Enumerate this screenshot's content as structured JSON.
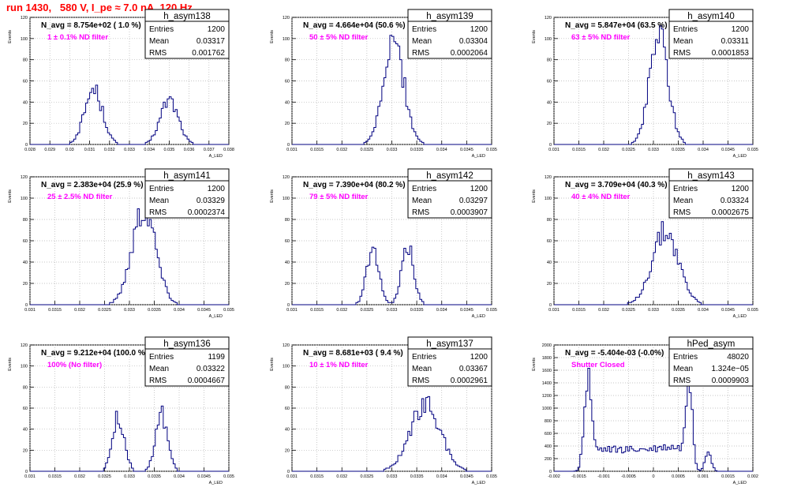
{
  "page": {
    "title": "run 1430,   580 V, I_pe ≈ 7.0 nA, 120 Hz"
  },
  "colors": {
    "hist": "#000080",
    "title": "#ff0000",
    "filter_label": "#ff00ff",
    "grid": "#b4b4b4"
  },
  "chart_data": [
    {
      "type": "histogram",
      "name": "h_asym138",
      "color": "#000080",
      "nav_label": "N_avg = 8.754e+02 ( 1.0 %)",
      "filter_label": "1 ± 0.1% ND filter",
      "stats": [
        [
          "Entries",
          "1200"
        ],
        [
          "Mean",
          "0.03317"
        ],
        [
          "RMS",
          "0.001762"
        ]
      ],
      "xlabel": "A_LED",
      "ylabel": "Events",
      "xlim": [
        0.028,
        0.038
      ],
      "ylim": [
        0,
        120
      ],
      "xticks": [
        "0.028",
        "0.029",
        "0.03",
        "0.031",
        "0.032",
        "0.033",
        "0.034",
        "0.035",
        "0.036",
        "0.037",
        "0.038"
      ],
      "yticks": [
        "0",
        "20",
        "40",
        "60",
        "80",
        "100",
        "120"
      ],
      "peaks": [
        [
          0.0312,
          0.00045,
          52
        ],
        [
          0.035,
          0.00045,
          42
        ]
      ]
    },
    {
      "type": "histogram",
      "name": "h_asym139",
      "color": "#000080",
      "nav_label": "N_avg = 4.664e+04 (50.6 %)",
      "filter_label": "50 ± 5% ND filter",
      "stats": [
        [
          "Entries",
          "1200"
        ],
        [
          "Mean",
          "0.03304"
        ],
        [
          "RMS",
          "0.0002064"
        ]
      ],
      "xlabel": "A_LED",
      "ylabel": "Events",
      "xlim": [
        0.031,
        0.035
      ],
      "ylim": [
        0,
        120
      ],
      "xticks": [
        "0.031",
        "0.0315",
        "0.032",
        "0.0325",
        "0.033",
        "0.0335",
        "0.034",
        "0.0345",
        "0.035"
      ],
      "yticks": [
        "0",
        "20",
        "40",
        "60",
        "80",
        "100",
        "120"
      ],
      "peaks": [
        [
          0.03304,
          0.000206,
          95
        ]
      ]
    },
    {
      "type": "histogram",
      "name": "h_asym140",
      "color": "#000080",
      "nav_label": "N_avg = 5.847e+04 (63.5 %)",
      "filter_label": "63 ± 5% ND filter",
      "stats": [
        [
          "Entries",
          "1200"
        ],
        [
          "Mean",
          "0.03311"
        ],
        [
          "RMS",
          "0.0001853"
        ]
      ],
      "xlabel": "A_LED",
      "ylabel": "Events",
      "xlim": [
        0.031,
        0.035
      ],
      "ylim": [
        0,
        120
      ],
      "xticks": [
        "0.031",
        "0.0315",
        "0.032",
        "0.0325",
        "0.033",
        "0.0335",
        "0.034",
        "0.0345",
        "0.035"
      ],
      "yticks": [
        "0",
        "20",
        "40",
        "60",
        "80",
        "100",
        "120"
      ],
      "peaks": [
        [
          0.03311,
          0.000185,
          108
        ]
      ]
    },
    {
      "type": "histogram",
      "name": "h_asym141",
      "color": "#000080",
      "nav_label": "N_avg = 2.383e+04 (25.9 %)",
      "filter_label": "25 ± 2.5% ND filter",
      "stats": [
        [
          "Entries",
          "1200"
        ],
        [
          "Mean",
          "0.03329"
        ],
        [
          "RMS",
          "0.0002374"
        ]
      ],
      "xlabel": "A_LED",
      "ylabel": "Events",
      "xlim": [
        0.031,
        0.035
      ],
      "ylim": [
        0,
        120
      ],
      "xticks": [
        "0.031",
        "0.0315",
        "0.032",
        "0.0325",
        "0.033",
        "0.0335",
        "0.034",
        "0.0345",
        "0.035"
      ],
      "yticks": [
        "0",
        "20",
        "40",
        "60",
        "80",
        "100",
        "120"
      ],
      "peaks": [
        [
          0.03329,
          0.000237,
          90
        ]
      ]
    },
    {
      "type": "histogram",
      "name": "h_asym142",
      "color": "#000080",
      "nav_label": "N_avg = 7.390e+04 (80.2 %)",
      "filter_label": "79 ± 5% ND filter",
      "stats": [
        [
          "Entries",
          "1200"
        ],
        [
          "Mean",
          "0.03297"
        ],
        [
          "RMS",
          "0.0003907"
        ]
      ],
      "xlabel": "A_LED",
      "ylabel": "Events",
      "xlim": [
        0.031,
        0.035
      ],
      "ylim": [
        0,
        120
      ],
      "xticks": [
        "0.031",
        "0.0315",
        "0.032",
        "0.0325",
        "0.033",
        "0.0335",
        "0.034",
        "0.0345",
        "0.035"
      ],
      "yticks": [
        "0",
        "20",
        "40",
        "60",
        "80",
        "100",
        "120"
      ],
      "peaks": [
        [
          0.03262,
          0.00012,
          55
        ],
        [
          0.03332,
          0.00012,
          55
        ]
      ]
    },
    {
      "type": "histogram",
      "name": "h_asym143",
      "color": "#000080",
      "nav_label": "N_avg = 3.709e+04 (40.3 %)",
      "filter_label": "40 ± 4% ND filter",
      "stats": [
        [
          "Entries",
          "1200"
        ],
        [
          "Mean",
          "0.03324"
        ],
        [
          "RMS",
          "0.0002675"
        ]
      ],
      "xlabel": "A_LED",
      "ylabel": "Events",
      "xlim": [
        0.031,
        0.035
      ],
      "ylim": [
        0,
        120
      ],
      "xticks": [
        "0.031",
        "0.0315",
        "0.032",
        "0.0325",
        "0.033",
        "0.0335",
        "0.034",
        "0.0345",
        "0.035"
      ],
      "yticks": [
        "0",
        "20",
        "40",
        "60",
        "80",
        "100",
        "120"
      ],
      "peaks": [
        [
          0.03324,
          0.000265,
          68
        ]
      ]
    },
    {
      "type": "histogram",
      "name": "h_asym136",
      "color": "#000080",
      "nav_label": "N_avg = 9.212e+04 (100.0 %)",
      "filter_label": "100% (No filter)",
      "stats": [
        [
          "Entries",
          "1199"
        ],
        [
          "Mean",
          "0.03322"
        ],
        [
          "RMS",
          "0.0004667"
        ]
      ],
      "xlabel": "A_LED",
      "ylabel": "Events",
      "xlim": [
        0.031,
        0.035
      ],
      "ylim": [
        0,
        120
      ],
      "xticks": [
        "0.031",
        "0.0315",
        "0.032",
        "0.0325",
        "0.033",
        "0.0335",
        "0.034",
        "0.0345",
        "0.035"
      ],
      "yticks": [
        "0",
        "20",
        "40",
        "60",
        "80",
        "100",
        "120"
      ],
      "peaks": [
        [
          0.03278,
          0.00012,
          52
        ],
        [
          0.03365,
          0.00012,
          54
        ]
      ]
    },
    {
      "type": "histogram",
      "name": "h_asym137",
      "color": "#000080",
      "nav_label": "N_avg = 8.681e+03 ( 9.4 %)",
      "filter_label": "10 ± 1% ND filter",
      "stats": [
        [
          "Entries",
          "1200"
        ],
        [
          "Mean",
          "0.03367"
        ],
        [
          "RMS",
          "0.0002961"
        ]
      ],
      "xlabel": "A_LED",
      "ylabel": "Events",
      "xlim": [
        0.031,
        0.035
      ],
      "ylim": [
        0,
        120
      ],
      "xticks": [
        "0.031",
        "0.0315",
        "0.032",
        "0.0325",
        "0.033",
        "0.0335",
        "0.034",
        "0.0345",
        "0.035"
      ],
      "yticks": [
        "0",
        "20",
        "40",
        "60",
        "80",
        "100",
        "120"
      ],
      "peaks": [
        [
          0.03367,
          0.000296,
          65
        ]
      ]
    },
    {
      "type": "histogram",
      "name": "hPed_asym",
      "color": "#000080",
      "nav_label": "N_avg = -5.404e-03 (-0.0%)",
      "filter_label": "Shutter Closed",
      "stats": [
        [
          "Entries",
          "48020"
        ],
        [
          "Mean",
          "1.324e−05"
        ],
        [
          "RMS",
          "0.0009903"
        ]
      ],
      "xlabel": "A_LED",
      "ylabel": "Events",
      "xlim": [
        -0.002,
        0.002
      ],
      "ylim": [
        0,
        2000
      ],
      "xticks": [
        "-0.002",
        "-0.0015",
        "-0.001",
        "-0.0005",
        "0",
        "0.0005",
        "0.001",
        "0.0015",
        "0.002"
      ],
      "yticks": [
        "0",
        "200",
        "400",
        "600",
        "800",
        "1000",
        "1200",
        "1400",
        "1600",
        "1800",
        "2000"
      ],
      "baseline": 340,
      "peaks": [
        [
          -0.00133,
          7e-05,
          1320
        ],
        [
          0.00073,
          6e-05,
          1480
        ],
        [
          0.0011,
          6e-05,
          350
        ],
        [
          0.00032,
          0.0002,
          40
        ]
      ]
    }
  ]
}
